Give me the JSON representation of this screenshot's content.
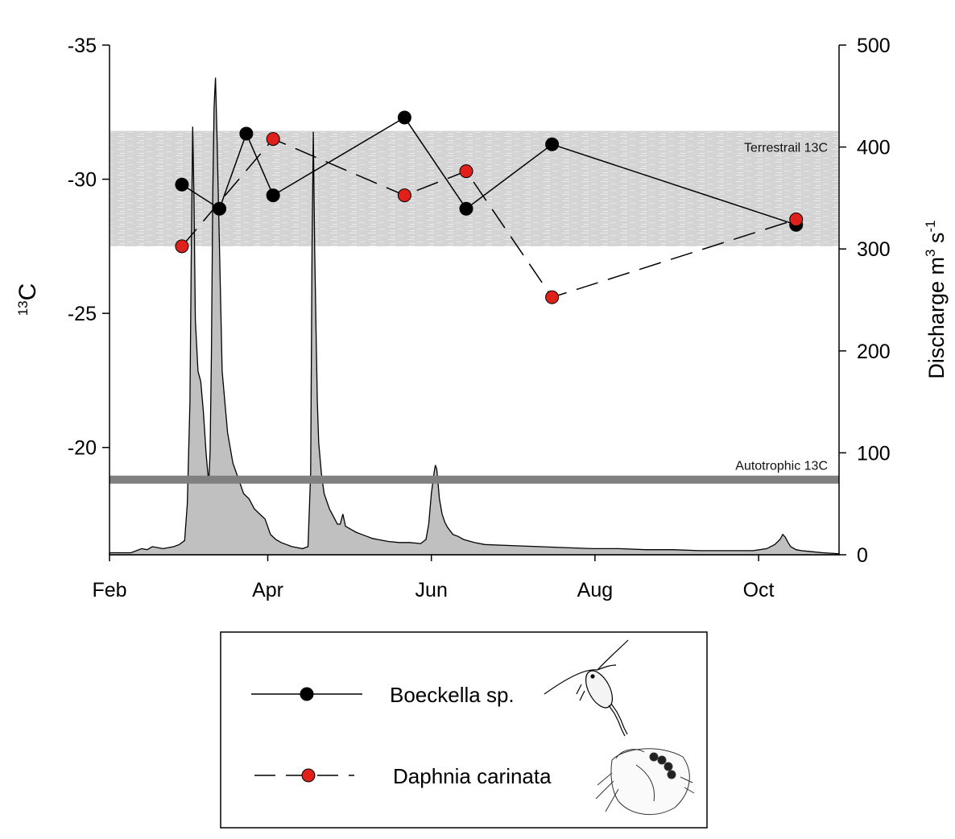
{
  "chart_data": {
    "type": "line",
    "title": "",
    "x_axis": {
      "label": "",
      "tick_labels": [
        "Feb",
        "Apr",
        "Jun",
        "Aug",
        "Oct"
      ],
      "tick_days": [
        0,
        59,
        120,
        181,
        242
      ],
      "range_days": [
        0,
        272
      ],
      "start": "Feb 1"
    },
    "y_left": {
      "label_superscript": "13",
      "label_main": "C",
      "range": [
        -16,
        -35
      ],
      "ticks": [
        -35,
        -30,
        -25,
        -20
      ],
      "tick_labels": [
        "-35",
        "-30",
        "-25",
        "-20"
      ]
    },
    "y_right": {
      "label_main": "Discharge m",
      "label_sup1": "3",
      "label_mid": " s",
      "label_sup2": "-1",
      "range": [
        0,
        500
      ],
      "ticks": [
        0,
        100,
        200,
        300,
        400,
        500
      ],
      "tick_labels": [
        "0",
        "100",
        "200",
        "300",
        "400",
        "500"
      ]
    },
    "bands": {
      "terrestrial": {
        "label": "Terrestrail 13C",
        "from": -27.5,
        "to": -31.8,
        "color": "#d4d4d4"
      },
      "autotrophic": {
        "label": "Autotrophic 13C",
        "value": -18.8,
        "color": "#808080"
      }
    },
    "discharge": {
      "name": "Discharge",
      "fill": "#c0c0c0",
      "x": [
        0,
        8,
        12,
        14,
        16,
        20,
        24,
        26,
        28,
        29,
        30,
        30.5,
        31,
        31.5,
        32,
        33,
        34,
        35,
        36,
        37,
        37.5,
        38,
        38.5,
        39,
        39.5,
        40,
        41,
        42,
        44,
        46,
        48,
        50,
        52,
        54,
        56,
        58,
        60,
        62,
        64,
        66,
        68,
        70,
        72,
        74,
        75,
        75.5,
        76,
        76.5,
        77,
        77.5,
        78,
        79,
        80,
        82,
        84,
        85,
        86,
        87,
        88,
        90,
        92,
        94,
        96,
        98,
        100,
        104,
        108,
        112,
        116,
        118,
        119,
        120,
        121,
        121.5,
        122,
        122.5,
        123,
        124,
        125,
        126,
        128,
        130,
        132,
        136,
        140,
        150,
        160,
        170,
        180,
        190,
        200,
        210,
        220,
        230,
        240,
        245,
        248,
        250,
        251,
        252,
        253,
        254,
        256,
        258,
        262,
        266,
        272
      ],
      "y": [
        2,
        2,
        6,
        5,
        8,
        6,
        8,
        10,
        14,
        50,
        150,
        300,
        420,
        350,
        230,
        180,
        170,
        140,
        100,
        70,
        100,
        200,
        350,
        440,
        468,
        420,
        300,
        180,
        120,
        90,
        75,
        60,
        55,
        45,
        40,
        35,
        20,
        15,
        12,
        10,
        8,
        7,
        6,
        8,
        80,
        300,
        415,
        300,
        220,
        150,
        110,
        80,
        60,
        45,
        35,
        30,
        30,
        40,
        28,
        25,
        22,
        20,
        18,
        16,
        15,
        13,
        12,
        12,
        11,
        15,
        30,
        60,
        80,
        88,
        84,
        70,
        55,
        40,
        32,
        27,
        20,
        18,
        15,
        12,
        10,
        9,
        8,
        7,
        6,
        6,
        5,
        5,
        4,
        4,
        4,
        6,
        10,
        15,
        20,
        17,
        12,
        8,
        5,
        4,
        3,
        2,
        1
      ]
    },
    "series": [
      {
        "name": "Boeckella sp.",
        "style": "solid",
        "marker_color": "#000000",
        "x": [
          27,
          41,
          51,
          61,
          110,
          133,
          165,
          256
        ],
        "y": [
          -29.8,
          -28.9,
          -31.7,
          -29.4,
          -32.3,
          -28.9,
          -31.3,
          -28.3
        ]
      },
      {
        "name": "Daphnia carinata",
        "style": "dashed",
        "marker_color": "#e0201b",
        "x": [
          27,
          61,
          110,
          133,
          165,
          256
        ],
        "y": [
          -27.5,
          -31.5,
          -29.4,
          -30.3,
          -25.6,
          -28.5
        ]
      }
    ],
    "legend": {
      "position": "bottom",
      "entries": [
        "Boeckella sp.",
        "Daphnia carinata"
      ]
    }
  }
}
